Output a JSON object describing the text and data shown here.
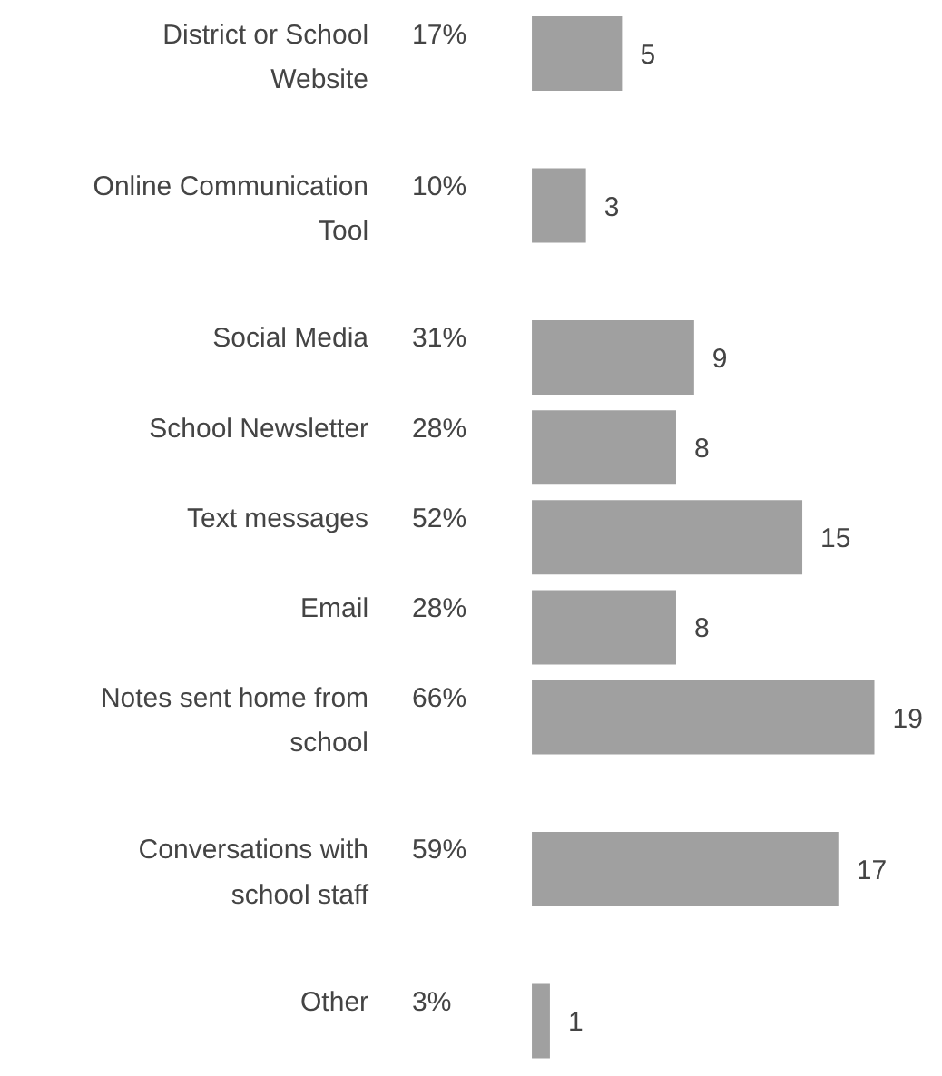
{
  "chart_data": {
    "type": "bar",
    "orientation": "horizontal",
    "data_labels": true,
    "grid": false,
    "tick_labels": false,
    "color": "#a0a0a0",
    "categories": [
      "District or School Website",
      "Online Communication Tool",
      "Social Media",
      "School Newsletter",
      "Text messages",
      "Email",
      "Notes sent home from school",
      "Conversations with school staff",
      "Other"
    ],
    "values": [
      5,
      3,
      9,
      8,
      15,
      8,
      19,
      17,
      1
    ],
    "annotations": [
      "17%",
      "10%",
      "31%",
      "28%",
      "52%",
      "28%",
      "66%",
      "59%",
      "3%"
    ]
  }
}
